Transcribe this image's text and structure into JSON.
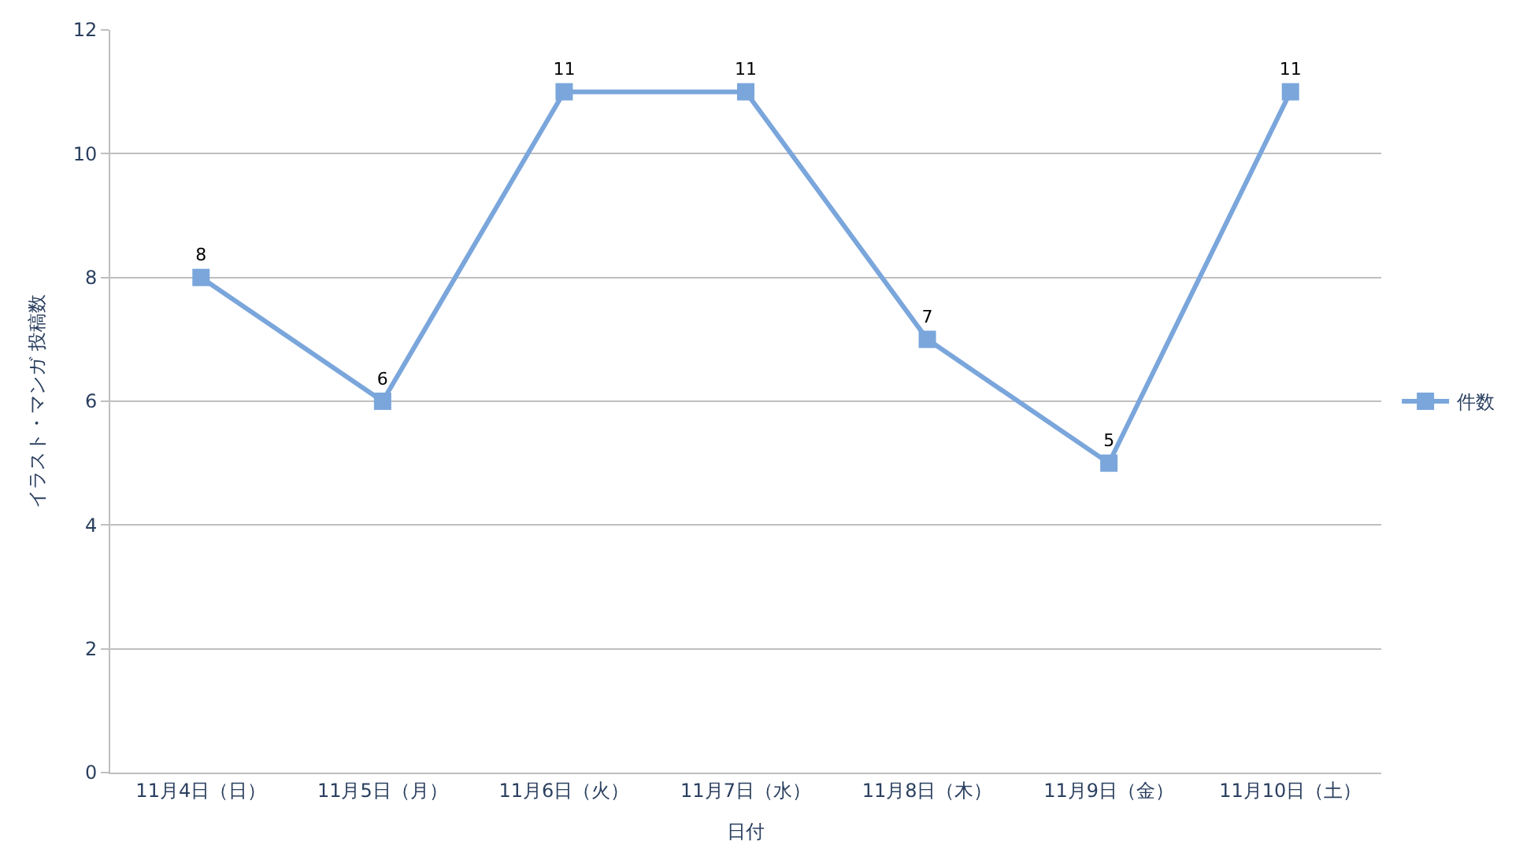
{
  "chart_data": {
    "type": "line",
    "xlabel": "日付",
    "ylabel": "イラスト・マンガ 投稿数",
    "categories": [
      "11月4日（日）",
      "11月5日（月）",
      "11月6日（火）",
      "11月7日（水）",
      "11月8日（木）",
      "11月9日（金）",
      "11月10日（土）"
    ],
    "series": [
      {
        "name": "件数",
        "color": "#7aa6db",
        "values": [
          8,
          6,
          11,
          11,
          7,
          5,
          11
        ]
      }
    ],
    "ylim": [
      0,
      12
    ],
    "yticks": [
      0,
      2,
      4,
      6,
      8,
      10,
      12
    ],
    "grid": "y",
    "legend": "right",
    "marker": "square",
    "line_style": "solid",
    "data_labels": true
  }
}
